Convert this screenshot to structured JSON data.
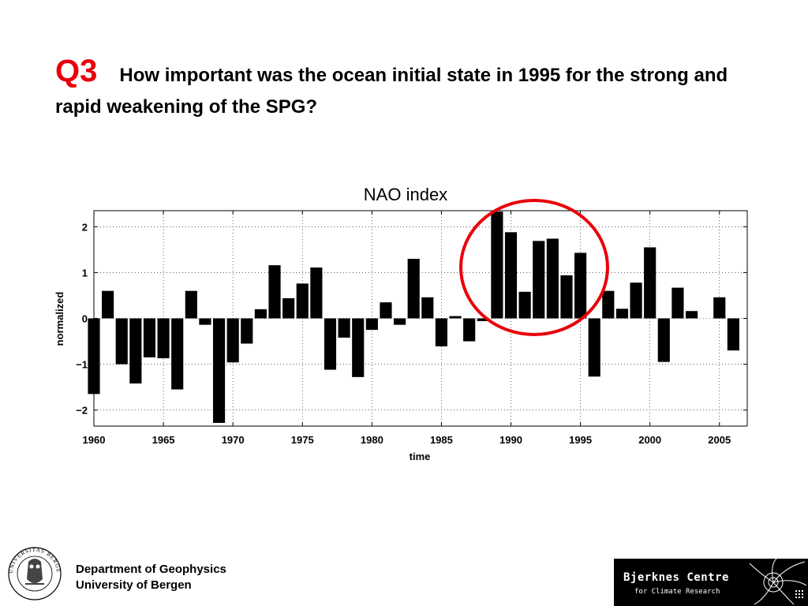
{
  "slide": {
    "q_label": "Q3",
    "title_text": "How important was the ocean initial state in 1995 for the strong and rapid weakening of the SPG?"
  },
  "footer": {
    "department": "Department of Geophysics",
    "university": "University of Bergen",
    "seal_text": "UNIVERSITAS BERGENSIS",
    "logo_title": "Bjerknes Centre",
    "logo_subtitle": "for Climate Research"
  },
  "colors": {
    "accent_red": "#e8000b",
    "bar": "#000000",
    "logo_bg": "#000000"
  },
  "chart_data": {
    "type": "bar",
    "title": "NAO index",
    "xlabel": "time",
    "ylabel": "normalized",
    "xlim": [
      1960,
      2007
    ],
    "ylim": [
      -2.35,
      2.35
    ],
    "xticks": [
      1960,
      1965,
      1970,
      1975,
      1980,
      1985,
      1990,
      1995,
      2000,
      2005
    ],
    "yticks": [
      -2,
      -1,
      0,
      1,
      2
    ],
    "ytick_labels": [
      "−2",
      "−1",
      "0",
      "1",
      "2"
    ],
    "grid": true,
    "annotation": {
      "shape": "circle",
      "color": "#e8000b",
      "highlights_years": [
        1989,
        1995
      ]
    },
    "series": [
      {
        "x": [
          1960,
          1961,
          1962,
          1963,
          1964,
          1965,
          1966,
          1967,
          1968,
          1969,
          1970,
          1971,
          1972,
          1973,
          1974,
          1975,
          1976,
          1977,
          1978,
          1979,
          1980,
          1981,
          1982,
          1983,
          1984,
          1985,
          1986,
          1987,
          1988,
          1989,
          1990,
          1991,
          1992,
          1993,
          1994,
          1995,
          1996,
          1997,
          1998,
          1999,
          2000,
          2001,
          2002,
          2003,
          2004,
          2005,
          2006
        ],
        "values": [
          -1.65,
          0.6,
          -1.0,
          -1.42,
          -0.85,
          -0.87,
          -1.55,
          0.6,
          -0.14,
          -2.28,
          -0.96,
          -0.55,
          0.2,
          1.16,
          0.44,
          0.76,
          1.11,
          -1.12,
          -0.42,
          -1.28,
          -0.25,
          0.35,
          -0.14,
          1.3,
          0.46,
          -0.61,
          0.05,
          -0.5,
          -0.06,
          2.33,
          1.88,
          0.58,
          1.69,
          1.74,
          0.94,
          1.43,
          -1.27,
          0.6,
          0.21,
          0.78,
          1.55,
          -0.95,
          0.67,
          0.16,
          0.0,
          0.46,
          -0.7
        ]
      }
    ]
  }
}
